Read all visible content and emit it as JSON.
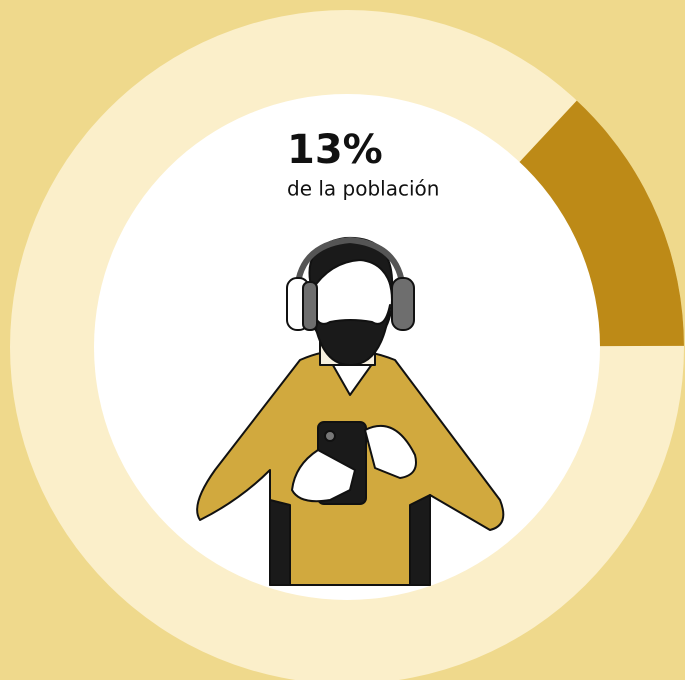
{
  "chart_data": {
    "type": "donut",
    "values": [
      13
    ],
    "value_labels": [
      "13%"
    ],
    "annotation": "de la población",
    "color": "#bd8a17"
  }
}
